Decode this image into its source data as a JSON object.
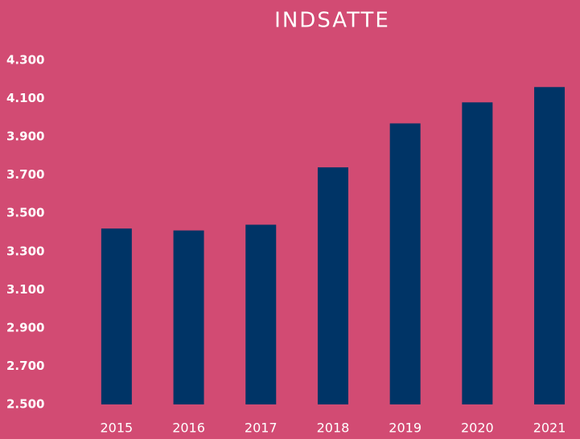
{
  "chart_data": {
    "type": "bar",
    "title": "INDSATTE",
    "categories": [
      "2015",
      "2016",
      "2017",
      "2018",
      "2019",
      "2020",
      "2021"
    ],
    "values": [
      3420,
      3410,
      3440,
      3740,
      3970,
      4080,
      4160
    ],
    "color": "#003466",
    "ylim": [
      2500,
      4300
    ],
    "yticks": [
      {
        "value": 2500,
        "label": "2.500"
      },
      {
        "value": 2700,
        "label": "2.700"
      },
      {
        "value": 2900,
        "label": "2.900"
      },
      {
        "value": 3100,
        "label": "3.100"
      },
      {
        "value": 3300,
        "label": "3.300"
      },
      {
        "value": 3500,
        "label": "3.500"
      },
      {
        "value": 3700,
        "label": "3.700"
      },
      {
        "value": 3900,
        "label": "3.900"
      },
      {
        "value": 4100,
        "label": "4.100"
      },
      {
        "value": 4300,
        "label": "4.300"
      }
    ],
    "grid": false
  }
}
